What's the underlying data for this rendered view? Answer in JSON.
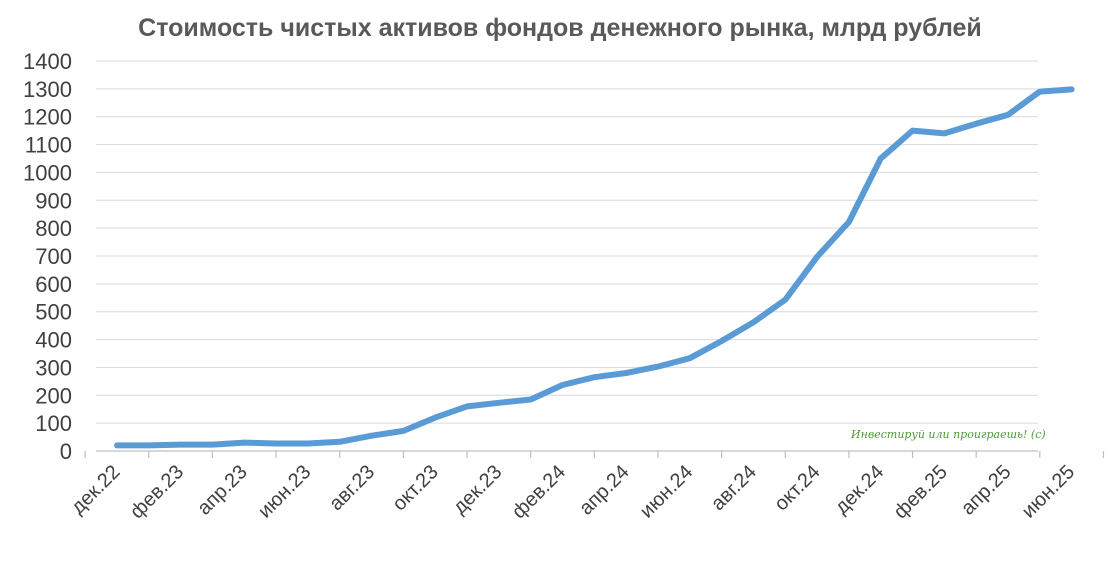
{
  "chart_data": {
    "type": "line",
    "title": "Стоимость чистых активов фондов денежного рынка,  млрд рублей",
    "xlabel": "",
    "ylabel": "",
    "ylim": [
      0,
      1400
    ],
    "yticks": [
      0,
      100,
      200,
      300,
      400,
      500,
      600,
      700,
      800,
      900,
      1000,
      1100,
      1200,
      1300,
      1400
    ],
    "grid": true,
    "legend": "none",
    "x_tick_labels": [
      "дек.22",
      "фев.23",
      "апр.23",
      "июн.23",
      "авг.23",
      "окт.23",
      "дек.23",
      "фев.24",
      "апр.24",
      "июн.24",
      "авг.24",
      "окт.24",
      "дек.24",
      "фев.25",
      "апр.25",
      "июн.25"
    ],
    "x": [
      "дек.22",
      "янв.23",
      "фев.23",
      "мар.23",
      "апр.23",
      "май.23",
      "июн.23",
      "июл.23",
      "авг.23",
      "сен.23",
      "окт.23",
      "ноя.23",
      "дек.23",
      "янв.24",
      "фев.24",
      "мар.24",
      "апр.24",
      "май.24",
      "июн.24",
      "июл.24",
      "авг.24",
      "сен.24",
      "окт.24",
      "ноя.24",
      "дек.24",
      "янв.25",
      "фев.25",
      "мар.25",
      "апр.25",
      "май.25",
      "июн.25"
    ],
    "series": [
      {
        "color": "#5b9bd5",
        "values": [
          20,
          20,
          23,
          23,
          30,
          27,
          27,
          33,
          55,
          72,
          120,
          160,
          173,
          185,
          237,
          265,
          280,
          303,
          333,
          395,
          462,
          543,
          697,
          822,
          1050,
          1150,
          1140,
          1175,
          1207,
          1290,
          1298
        ]
      }
    ]
  },
  "watermark": "Инвестируй или проиграешь! (с)"
}
